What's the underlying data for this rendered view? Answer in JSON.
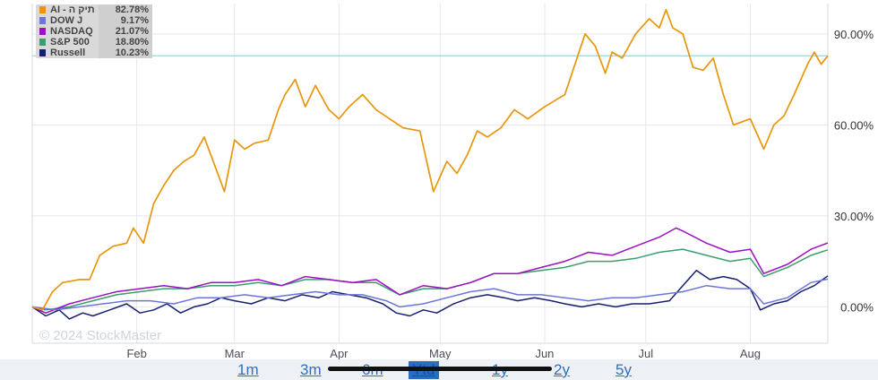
{
  "chart_data": {
    "type": "line",
    "ylim": [
      -12,
      100
    ],
    "yticks": [
      0,
      30,
      60,
      90
    ],
    "ytick_labels": [
      "0.00%",
      "30.00%",
      "60.00%",
      "90.00%"
    ],
    "xlim": [
      "2024-01-01",
      "2024-08-24"
    ],
    "xticks": [
      "2024-02-01",
      "2024-03-01",
      "2024-04-01",
      "2024-05-01",
      "2024-06-01",
      "2024-07-01",
      "2024-08-01"
    ],
    "xtick_labels": [
      "Feb",
      "Mar",
      "Apr",
      "May",
      "Jun",
      "Jul",
      "Aug"
    ],
    "reference_line": 82.78,
    "grid": true,
    "legend_position": "top-left",
    "series": [
      {
        "name": "AI - תיק ה",
        "color": "#e8960c",
        "last_value": "82.78%",
        "points": [
          [
            "2024-01-01",
            0
          ],
          [
            "2024-01-04",
            -1
          ],
          [
            "2024-01-07",
            5
          ],
          [
            "2024-01-10",
            8
          ],
          [
            "2024-01-15",
            9
          ],
          [
            "2024-01-18",
            9
          ],
          [
            "2024-01-21",
            17
          ],
          [
            "2024-01-25",
            20
          ],
          [
            "2024-01-29",
            21
          ],
          [
            "2024-01-31",
            26
          ],
          [
            "2024-02-03",
            21
          ],
          [
            "2024-02-06",
            34
          ],
          [
            "2024-02-09",
            40
          ],
          [
            "2024-02-12",
            45
          ],
          [
            "2024-02-15",
            48
          ],
          [
            "2024-02-18",
            50
          ],
          [
            "2024-02-21",
            56
          ],
          [
            "2024-02-24",
            47
          ],
          [
            "2024-02-27",
            38
          ],
          [
            "2024-03-01",
            55
          ],
          [
            "2024-03-04",
            52
          ],
          [
            "2024-03-07",
            54
          ],
          [
            "2024-03-11",
            55
          ],
          [
            "2024-03-14",
            65
          ],
          [
            "2024-03-16",
            70
          ],
          [
            "2024-03-19",
            75
          ],
          [
            "2024-03-22",
            66
          ],
          [
            "2024-03-25",
            73
          ],
          [
            "2024-03-29",
            65
          ],
          [
            "2024-04-01",
            62
          ],
          [
            "2024-04-04",
            66
          ],
          [
            "2024-04-08",
            70
          ],
          [
            "2024-04-12",
            65
          ],
          [
            "2024-04-16",
            62
          ],
          [
            "2024-04-20",
            59
          ],
          [
            "2024-04-25",
            58
          ],
          [
            "2024-04-29",
            38
          ],
          [
            "2024-05-03",
            48
          ],
          [
            "2024-05-06",
            44
          ],
          [
            "2024-05-09",
            50
          ],
          [
            "2024-05-12",
            58
          ],
          [
            "2024-05-15",
            56
          ],
          [
            "2024-05-19",
            59
          ],
          [
            "2024-05-23",
            65
          ],
          [
            "2024-05-27",
            62
          ],
          [
            "2024-06-01",
            66
          ],
          [
            "2024-06-04",
            68
          ],
          [
            "2024-06-07",
            70
          ],
          [
            "2024-06-10",
            80
          ],
          [
            "2024-06-13",
            90
          ],
          [
            "2024-06-16",
            86
          ],
          [
            "2024-06-19",
            77
          ],
          [
            "2024-06-21",
            84
          ],
          [
            "2024-06-24",
            82
          ],
          [
            "2024-06-28",
            90
          ],
          [
            "2024-07-02",
            95
          ],
          [
            "2024-07-05",
            92
          ],
          [
            "2024-07-07",
            98
          ],
          [
            "2024-07-09",
            92
          ],
          [
            "2024-07-12",
            90
          ],
          [
            "2024-07-15",
            79
          ],
          [
            "2024-07-18",
            78
          ],
          [
            "2024-07-21",
            82
          ],
          [
            "2024-07-24",
            70
          ],
          [
            "2024-07-27",
            60
          ],
          [
            "2024-08-01",
            62
          ],
          [
            "2024-08-05",
            52
          ],
          [
            "2024-08-08",
            60
          ],
          [
            "2024-08-11",
            63
          ],
          [
            "2024-08-14",
            70
          ],
          [
            "2024-08-18",
            80
          ],
          [
            "2024-08-20",
            84
          ],
          [
            "2024-08-22",
            80
          ],
          [
            "2024-08-24",
            82.78
          ]
        ]
      },
      {
        "name": "DOW J",
        "color": "#6d75d8",
        "last_value": "9.17%",
        "points": [
          [
            "2024-01-01",
            0
          ],
          [
            "2024-01-08",
            -1
          ],
          [
            "2024-01-15",
            0
          ],
          [
            "2024-01-22",
            1
          ],
          [
            "2024-01-29",
            2
          ],
          [
            "2024-02-05",
            2
          ],
          [
            "2024-02-12",
            1
          ],
          [
            "2024-02-19",
            3
          ],
          [
            "2024-02-26",
            3
          ],
          [
            "2024-03-04",
            4
          ],
          [
            "2024-03-11",
            3
          ],
          [
            "2024-03-18",
            4
          ],
          [
            "2024-03-25",
            5
          ],
          [
            "2024-04-01",
            4
          ],
          [
            "2024-04-08",
            4
          ],
          [
            "2024-04-15",
            2
          ],
          [
            "2024-04-19",
            0
          ],
          [
            "2024-04-26",
            1
          ],
          [
            "2024-05-03",
            3
          ],
          [
            "2024-05-10",
            5
          ],
          [
            "2024-05-17",
            6
          ],
          [
            "2024-05-24",
            4
          ],
          [
            "2024-05-31",
            4
          ],
          [
            "2024-06-07",
            3
          ],
          [
            "2024-06-14",
            2
          ],
          [
            "2024-06-21",
            3
          ],
          [
            "2024-06-28",
            3
          ],
          [
            "2024-07-05",
            4
          ],
          [
            "2024-07-12",
            5
          ],
          [
            "2024-07-19",
            7
          ],
          [
            "2024-07-26",
            6
          ],
          [
            "2024-08-01",
            6
          ],
          [
            "2024-08-05",
            1
          ],
          [
            "2024-08-12",
            3
          ],
          [
            "2024-08-19",
            8
          ],
          [
            "2024-08-24",
            9.17
          ]
        ]
      },
      {
        "name": "NASDAQ",
        "color": "#9b10c0",
        "last_value": "21.07%",
        "points": [
          [
            "2024-01-01",
            0
          ],
          [
            "2024-01-05",
            -2
          ],
          [
            "2024-01-12",
            1
          ],
          [
            "2024-01-19",
            3
          ],
          [
            "2024-01-26",
            5
          ],
          [
            "2024-02-02",
            6
          ],
          [
            "2024-02-09",
            7
          ],
          [
            "2024-02-16",
            6
          ],
          [
            "2024-02-23",
            8
          ],
          [
            "2024-03-01",
            8
          ],
          [
            "2024-03-08",
            9
          ],
          [
            "2024-03-15",
            7
          ],
          [
            "2024-03-22",
            10
          ],
          [
            "2024-03-29",
            9
          ],
          [
            "2024-04-05",
            8
          ],
          [
            "2024-04-12",
            9
          ],
          [
            "2024-04-19",
            4
          ],
          [
            "2024-04-26",
            7
          ],
          [
            "2024-05-03",
            6
          ],
          [
            "2024-05-10",
            8
          ],
          [
            "2024-05-17",
            11
          ],
          [
            "2024-05-24",
            11
          ],
          [
            "2024-05-31",
            13
          ],
          [
            "2024-06-07",
            15
          ],
          [
            "2024-06-14",
            18
          ],
          [
            "2024-06-21",
            17
          ],
          [
            "2024-06-28",
            20
          ],
          [
            "2024-07-05",
            23
          ],
          [
            "2024-07-10",
            26
          ],
          [
            "2024-07-12",
            25
          ],
          [
            "2024-07-19",
            21
          ],
          [
            "2024-07-26",
            18
          ],
          [
            "2024-08-01",
            19
          ],
          [
            "2024-08-05",
            11
          ],
          [
            "2024-08-12",
            14
          ],
          [
            "2024-08-19",
            19
          ],
          [
            "2024-08-24",
            21.07
          ]
        ]
      },
      {
        "name": "S&P 500",
        "color": "#3c9e6e",
        "last_value": "18.80%",
        "points": [
          [
            "2024-01-01",
            0
          ],
          [
            "2024-01-05",
            -1
          ],
          [
            "2024-01-12",
            0
          ],
          [
            "2024-01-19",
            2
          ],
          [
            "2024-01-26",
            4
          ],
          [
            "2024-02-02",
            5
          ],
          [
            "2024-02-09",
            6
          ],
          [
            "2024-02-16",
            6
          ],
          [
            "2024-02-23",
            7
          ],
          [
            "2024-03-01",
            7
          ],
          [
            "2024-03-08",
            8
          ],
          [
            "2024-03-15",
            7
          ],
          [
            "2024-03-22",
            9
          ],
          [
            "2024-03-29",
            9
          ],
          [
            "2024-04-05",
            8
          ],
          [
            "2024-04-12",
            8
          ],
          [
            "2024-04-19",
            4
          ],
          [
            "2024-04-26",
            6
          ],
          [
            "2024-05-03",
            6
          ],
          [
            "2024-05-10",
            8
          ],
          [
            "2024-05-17",
            11
          ],
          [
            "2024-05-24",
            11
          ],
          [
            "2024-05-31",
            12
          ],
          [
            "2024-06-07",
            13
          ],
          [
            "2024-06-14",
            15
          ],
          [
            "2024-06-21",
            15
          ],
          [
            "2024-06-28",
            16
          ],
          [
            "2024-07-05",
            18
          ],
          [
            "2024-07-12",
            19
          ],
          [
            "2024-07-19",
            17
          ],
          [
            "2024-07-26",
            15
          ],
          [
            "2024-08-01",
            16
          ],
          [
            "2024-08-05",
            10
          ],
          [
            "2024-08-12",
            13
          ],
          [
            "2024-08-19",
            17
          ],
          [
            "2024-08-24",
            18.8
          ]
        ]
      },
      {
        "name": "Russell",
        "color": "#16206e",
        "last_value": "10.23%",
        "points": [
          [
            "2024-01-01",
            0
          ],
          [
            "2024-01-05",
            -3
          ],
          [
            "2024-01-09",
            -1
          ],
          [
            "2024-01-12",
            -4
          ],
          [
            "2024-01-16",
            -2
          ],
          [
            "2024-01-19",
            -3
          ],
          [
            "2024-01-24",
            -1
          ],
          [
            "2024-01-29",
            1
          ],
          [
            "2024-02-02",
            -2
          ],
          [
            "2024-02-06",
            -1
          ],
          [
            "2024-02-10",
            1
          ],
          [
            "2024-02-14",
            -2
          ],
          [
            "2024-02-18",
            0
          ],
          [
            "2024-02-22",
            1
          ],
          [
            "2024-02-26",
            3
          ],
          [
            "2024-03-01",
            2
          ],
          [
            "2024-03-06",
            1
          ],
          [
            "2024-03-11",
            3
          ],
          [
            "2024-03-16",
            2
          ],
          [
            "2024-03-21",
            4
          ],
          [
            "2024-03-26",
            3
          ],
          [
            "2024-03-30",
            5
          ],
          [
            "2024-04-04",
            4
          ],
          [
            "2024-04-09",
            3
          ],
          [
            "2024-04-14",
            1
          ],
          [
            "2024-04-18",
            -2
          ],
          [
            "2024-04-22",
            -3
          ],
          [
            "2024-04-26",
            -1
          ],
          [
            "2024-04-30",
            -2
          ],
          [
            "2024-05-05",
            1
          ],
          [
            "2024-05-10",
            3
          ],
          [
            "2024-05-15",
            4
          ],
          [
            "2024-05-20",
            3
          ],
          [
            "2024-05-24",
            2
          ],
          [
            "2024-05-29",
            3
          ],
          [
            "2024-06-03",
            2
          ],
          [
            "2024-06-07",
            1
          ],
          [
            "2024-06-12",
            0
          ],
          [
            "2024-06-17",
            1
          ],
          [
            "2024-06-22",
            0
          ],
          [
            "2024-06-27",
            1
          ],
          [
            "2024-07-02",
            1
          ],
          [
            "2024-07-08",
            2
          ],
          [
            "2024-07-12",
            7
          ],
          [
            "2024-07-16",
            12
          ],
          [
            "2024-07-20",
            9
          ],
          [
            "2024-07-24",
            10
          ],
          [
            "2024-07-28",
            9
          ],
          [
            "2024-08-01",
            6
          ],
          [
            "2024-08-04",
            -1
          ],
          [
            "2024-08-08",
            1
          ],
          [
            "2024-08-12",
            2
          ],
          [
            "2024-08-16",
            5
          ],
          [
            "2024-08-20",
            7
          ],
          [
            "2024-08-24",
            10.23
          ]
        ]
      }
    ]
  },
  "watermark": "© 2024 StockMaster",
  "ranges": [
    {
      "label": "1m",
      "active": false
    },
    {
      "label": "3m",
      "active": false
    },
    {
      "label": "6m",
      "active": false
    },
    {
      "label": "Ytd",
      "active": true
    },
    {
      "label": "1y",
      "active": false
    },
    {
      "label": "2y",
      "active": false
    },
    {
      "label": "5y",
      "active": false
    }
  ]
}
